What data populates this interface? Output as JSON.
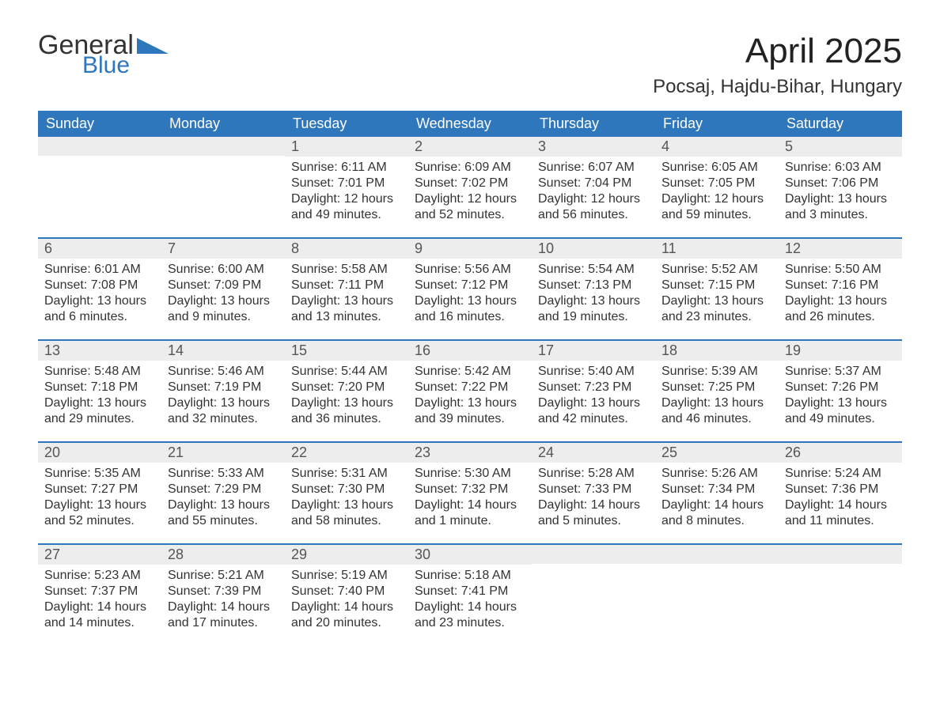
{
  "brand": {
    "word1": "General",
    "word2": "Blue",
    "accent_color": "#2f77bd"
  },
  "header": {
    "title": "April 2025",
    "location": "Pocsaj, Hajdu-Bihar, Hungary"
  },
  "colors": {
    "header_bg": "#2f77bd",
    "header_text": "#ffffff",
    "daynum_bg": "#ededed",
    "body_text": "#333333",
    "page_bg": "#ffffff",
    "week_border": "#2f77bd"
  },
  "fonts": {
    "title_size_pt": 33,
    "location_size_pt": 18,
    "dow_size_pt": 14,
    "daynum_size_pt": 14,
    "body_size_pt": 12
  },
  "calendar": {
    "days_of_week": [
      "Sunday",
      "Monday",
      "Tuesday",
      "Wednesday",
      "Thursday",
      "Friday",
      "Saturday"
    ],
    "weeks": [
      [
        {
          "num": "",
          "sunrise": "",
          "sunset": "",
          "daylight": ""
        },
        {
          "num": "",
          "sunrise": "",
          "sunset": "",
          "daylight": ""
        },
        {
          "num": "1",
          "sunrise": "Sunrise: 6:11 AM",
          "sunset": "Sunset: 7:01 PM",
          "daylight": "Daylight: 12 hours and 49 minutes."
        },
        {
          "num": "2",
          "sunrise": "Sunrise: 6:09 AM",
          "sunset": "Sunset: 7:02 PM",
          "daylight": "Daylight: 12 hours and 52 minutes."
        },
        {
          "num": "3",
          "sunrise": "Sunrise: 6:07 AM",
          "sunset": "Sunset: 7:04 PM",
          "daylight": "Daylight: 12 hours and 56 minutes."
        },
        {
          "num": "4",
          "sunrise": "Sunrise: 6:05 AM",
          "sunset": "Sunset: 7:05 PM",
          "daylight": "Daylight: 12 hours and 59 minutes."
        },
        {
          "num": "5",
          "sunrise": "Sunrise: 6:03 AM",
          "sunset": "Sunset: 7:06 PM",
          "daylight": "Daylight: 13 hours and 3 minutes."
        }
      ],
      [
        {
          "num": "6",
          "sunrise": "Sunrise: 6:01 AM",
          "sunset": "Sunset: 7:08 PM",
          "daylight": "Daylight: 13 hours and 6 minutes."
        },
        {
          "num": "7",
          "sunrise": "Sunrise: 6:00 AM",
          "sunset": "Sunset: 7:09 PM",
          "daylight": "Daylight: 13 hours and 9 minutes."
        },
        {
          "num": "8",
          "sunrise": "Sunrise: 5:58 AM",
          "sunset": "Sunset: 7:11 PM",
          "daylight": "Daylight: 13 hours and 13 minutes."
        },
        {
          "num": "9",
          "sunrise": "Sunrise: 5:56 AM",
          "sunset": "Sunset: 7:12 PM",
          "daylight": "Daylight: 13 hours and 16 minutes."
        },
        {
          "num": "10",
          "sunrise": "Sunrise: 5:54 AM",
          "sunset": "Sunset: 7:13 PM",
          "daylight": "Daylight: 13 hours and 19 minutes."
        },
        {
          "num": "11",
          "sunrise": "Sunrise: 5:52 AM",
          "sunset": "Sunset: 7:15 PM",
          "daylight": "Daylight: 13 hours and 23 minutes."
        },
        {
          "num": "12",
          "sunrise": "Sunrise: 5:50 AM",
          "sunset": "Sunset: 7:16 PM",
          "daylight": "Daylight: 13 hours and 26 minutes."
        }
      ],
      [
        {
          "num": "13",
          "sunrise": "Sunrise: 5:48 AM",
          "sunset": "Sunset: 7:18 PM",
          "daylight": "Daylight: 13 hours and 29 minutes."
        },
        {
          "num": "14",
          "sunrise": "Sunrise: 5:46 AM",
          "sunset": "Sunset: 7:19 PM",
          "daylight": "Daylight: 13 hours and 32 minutes."
        },
        {
          "num": "15",
          "sunrise": "Sunrise: 5:44 AM",
          "sunset": "Sunset: 7:20 PM",
          "daylight": "Daylight: 13 hours and 36 minutes."
        },
        {
          "num": "16",
          "sunrise": "Sunrise: 5:42 AM",
          "sunset": "Sunset: 7:22 PM",
          "daylight": "Daylight: 13 hours and 39 minutes."
        },
        {
          "num": "17",
          "sunrise": "Sunrise: 5:40 AM",
          "sunset": "Sunset: 7:23 PM",
          "daylight": "Daylight: 13 hours and 42 minutes."
        },
        {
          "num": "18",
          "sunrise": "Sunrise: 5:39 AM",
          "sunset": "Sunset: 7:25 PM",
          "daylight": "Daylight: 13 hours and 46 minutes."
        },
        {
          "num": "19",
          "sunrise": "Sunrise: 5:37 AM",
          "sunset": "Sunset: 7:26 PM",
          "daylight": "Daylight: 13 hours and 49 minutes."
        }
      ],
      [
        {
          "num": "20",
          "sunrise": "Sunrise: 5:35 AM",
          "sunset": "Sunset: 7:27 PM",
          "daylight": "Daylight: 13 hours and 52 minutes."
        },
        {
          "num": "21",
          "sunrise": "Sunrise: 5:33 AM",
          "sunset": "Sunset: 7:29 PM",
          "daylight": "Daylight: 13 hours and 55 minutes."
        },
        {
          "num": "22",
          "sunrise": "Sunrise: 5:31 AM",
          "sunset": "Sunset: 7:30 PM",
          "daylight": "Daylight: 13 hours and 58 minutes."
        },
        {
          "num": "23",
          "sunrise": "Sunrise: 5:30 AM",
          "sunset": "Sunset: 7:32 PM",
          "daylight": "Daylight: 14 hours and 1 minute."
        },
        {
          "num": "24",
          "sunrise": "Sunrise: 5:28 AM",
          "sunset": "Sunset: 7:33 PM",
          "daylight": "Daylight: 14 hours and 5 minutes."
        },
        {
          "num": "25",
          "sunrise": "Sunrise: 5:26 AM",
          "sunset": "Sunset: 7:34 PM",
          "daylight": "Daylight: 14 hours and 8 minutes."
        },
        {
          "num": "26",
          "sunrise": "Sunrise: 5:24 AM",
          "sunset": "Sunset: 7:36 PM",
          "daylight": "Daylight: 14 hours and 11 minutes."
        }
      ],
      [
        {
          "num": "27",
          "sunrise": "Sunrise: 5:23 AM",
          "sunset": "Sunset: 7:37 PM",
          "daylight": "Daylight: 14 hours and 14 minutes."
        },
        {
          "num": "28",
          "sunrise": "Sunrise: 5:21 AM",
          "sunset": "Sunset: 7:39 PM",
          "daylight": "Daylight: 14 hours and 17 minutes."
        },
        {
          "num": "29",
          "sunrise": "Sunrise: 5:19 AM",
          "sunset": "Sunset: 7:40 PM",
          "daylight": "Daylight: 14 hours and 20 minutes."
        },
        {
          "num": "30",
          "sunrise": "Sunrise: 5:18 AM",
          "sunset": "Sunset: 7:41 PM",
          "daylight": "Daylight: 14 hours and 23 minutes."
        },
        {
          "num": "",
          "sunrise": "",
          "sunset": "",
          "daylight": ""
        },
        {
          "num": "",
          "sunrise": "",
          "sunset": "",
          "daylight": ""
        },
        {
          "num": "",
          "sunrise": "",
          "sunset": "",
          "daylight": ""
        }
      ]
    ]
  }
}
